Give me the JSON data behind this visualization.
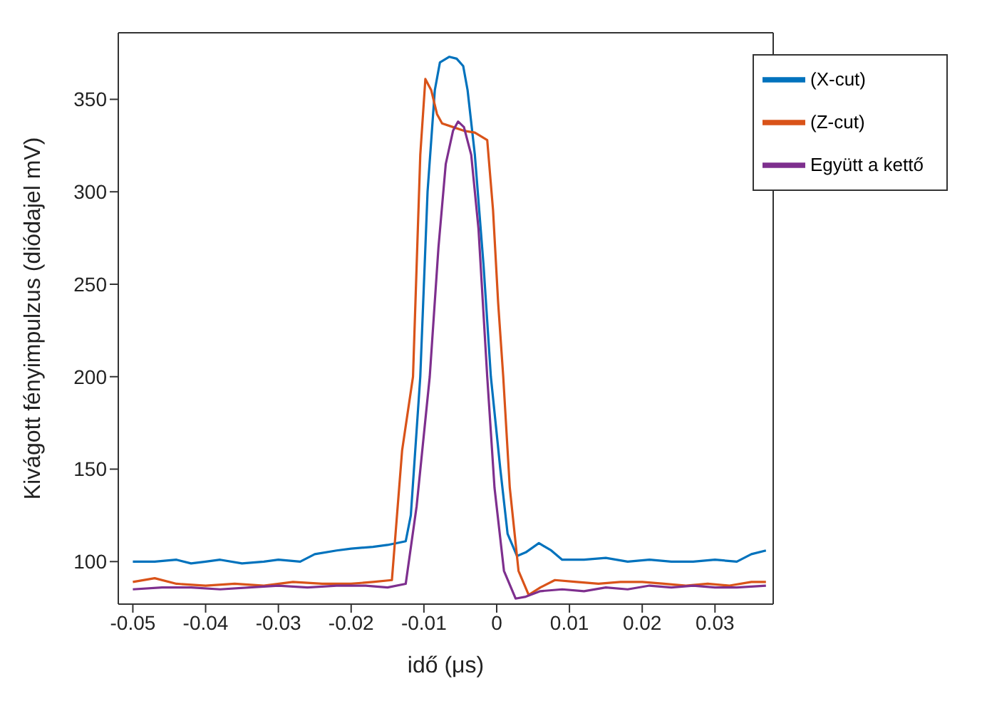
{
  "chart_data": {
    "type": "line",
    "xlabel": "idő (μs)",
    "ylabel": "Kivágott fényimpulzus (diódajel mV)",
    "xlim": [
      -0.052,
      0.038
    ],
    "ylim": [
      77,
      386
    ],
    "xticks": [
      -0.05,
      -0.04,
      -0.03,
      -0.02,
      -0.01,
      0,
      0.01,
      0.02,
      0.03
    ],
    "yticks": [
      100,
      150,
      200,
      250,
      300,
      350
    ],
    "legend": "top right",
    "grid": false,
    "series": [
      {
        "name": "(X-cut)",
        "color": "#0072bd",
        "x": [
          -0.05,
          -0.047,
          -0.044,
          -0.042,
          -0.04,
          -0.038,
          -0.035,
          -0.032,
          -0.03,
          -0.027,
          -0.025,
          -0.022,
          -0.02,
          -0.017,
          -0.015,
          -0.0125,
          -0.0118,
          -0.0105,
          -0.0095,
          -0.0085,
          -0.0078,
          -0.0065,
          -0.0055,
          -0.0046,
          -0.004,
          -0.003,
          -0.0018,
          -0.0008,
          0.0005,
          0.0015,
          0.0028,
          0.004,
          0.0058,
          0.0075,
          0.009,
          0.012,
          0.015,
          0.018,
          0.021,
          0.024,
          0.027,
          0.03,
          0.033,
          0.035,
          0.037
        ],
        "values": [
          100,
          100,
          101,
          99,
          100,
          101,
          99,
          100,
          101,
          100,
          104,
          106,
          107,
          108,
          109,
          111,
          125,
          200,
          300,
          355,
          370,
          373,
          372,
          368,
          355,
          320,
          260,
          200,
          150,
          115,
          103,
          105,
          110,
          106,
          101,
          101,
          102,
          100,
          101,
          100,
          100,
          101,
          100,
          104,
          106
        ]
      },
      {
        "name": "(Z-cut)",
        "color": "#d95319",
        "x": [
          -0.05,
          -0.047,
          -0.044,
          -0.04,
          -0.036,
          -0.032,
          -0.028,
          -0.024,
          -0.02,
          -0.017,
          -0.0144,
          -0.013,
          -0.0115,
          -0.0105,
          -0.0098,
          -0.009,
          -0.0082,
          -0.0075,
          -0.006,
          -0.0045,
          -0.003,
          -0.0013,
          -0.0005,
          0.0002,
          0.0009,
          0.0018,
          0.003,
          0.0044,
          0.006,
          0.008,
          0.011,
          0.014,
          0.017,
          0.02,
          0.023,
          0.026,
          0.029,
          0.032,
          0.035,
          0.037
        ],
        "values": [
          89,
          91,
          88,
          87,
          88,
          87,
          89,
          88,
          88,
          89,
          90,
          160,
          200,
          320,
          361,
          355,
          342,
          337,
          335,
          333,
          332,
          328,
          290,
          240,
          200,
          140,
          95,
          82,
          86,
          90,
          89,
          88,
          89,
          89,
          88,
          87,
          88,
          87,
          89,
          89
        ]
      },
      {
        "name": "Együtt a kettő",
        "color": "#7e2f8e",
        "x": [
          -0.05,
          -0.046,
          -0.042,
          -0.038,
          -0.034,
          -0.03,
          -0.026,
          -0.022,
          -0.018,
          -0.015,
          -0.0125,
          -0.011,
          -0.0092,
          -0.008,
          -0.007,
          -0.006,
          -0.0053,
          -0.0045,
          -0.0035,
          -0.0025,
          -0.0013,
          -0.0003,
          0.001,
          0.0026,
          0.004,
          0.006,
          0.009,
          0.012,
          0.015,
          0.018,
          0.021,
          0.024,
          0.027,
          0.03,
          0.033,
          0.037
        ],
        "values": [
          85,
          86,
          86,
          85,
          86,
          87,
          86,
          87,
          87,
          86,
          88,
          130,
          200,
          270,
          315,
          333,
          338,
          335,
          320,
          280,
          200,
          140,
          95,
          80,
          81,
          84,
          85,
          84,
          86,
          85,
          87,
          86,
          87,
          86,
          86,
          87
        ]
      }
    ]
  }
}
